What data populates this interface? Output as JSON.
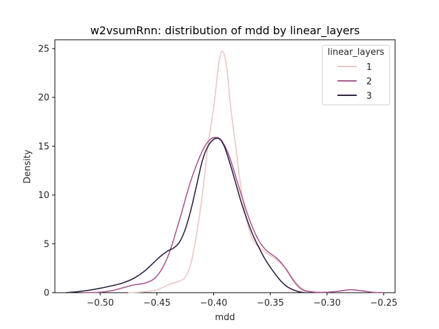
{
  "chart_data": {
    "type": "line",
    "title": "w2vsumRnn: distribution of mdd by linear_layers",
    "xlabel": "mdd",
    "ylabel": "Density",
    "xlim": [
      -0.54,
      -0.24
    ],
    "ylim": [
      0,
      25.9
    ],
    "xticks": [
      -0.5,
      -0.45,
      -0.4,
      -0.35,
      -0.3,
      -0.25
    ],
    "xtick_labels": [
      "−0.50",
      "−0.45",
      "−0.40",
      "−0.35",
      "−0.30",
      "−0.25"
    ],
    "yticks": [
      0,
      5,
      10,
      15,
      20,
      25
    ],
    "ytick_labels": [
      "0",
      "5",
      "10",
      "15",
      "20",
      "25"
    ],
    "grid": false,
    "legend": {
      "title": "linear_layers",
      "placement": "upper right"
    },
    "series": [
      {
        "name": "1",
        "color": "#ebc6c2",
        "x": [
          -0.475,
          -0.46,
          -0.45,
          -0.44,
          -0.43,
          -0.425,
          -0.42,
          -0.415,
          -0.41,
          -0.405,
          -0.4,
          -0.397,
          -0.395,
          -0.393,
          -0.391,
          -0.389,
          -0.387,
          -0.385,
          -0.38,
          -0.375,
          -0.37,
          -0.365,
          -0.36,
          -0.355,
          -0.35,
          -0.345,
          -0.34,
          -0.335,
          -0.33,
          -0.325,
          -0.32,
          -0.315
        ],
        "y": [
          0.0,
          0.1,
          0.3,
          0.8,
          1.2,
          1.6,
          3.0,
          6.0,
          10.0,
          15.0,
          19.0,
          22.0,
          23.8,
          24.7,
          24.5,
          23.5,
          21.5,
          19.0,
          14.5,
          10.0,
          7.0,
          5.3,
          4.7,
          4.2,
          3.8,
          3.4,
          2.9,
          2.3,
          1.4,
          0.7,
          0.3,
          0.1
        ]
      },
      {
        "name": "2",
        "color": "#a8578e",
        "x": [
          -0.515,
          -0.5,
          -0.49,
          -0.48,
          -0.47,
          -0.46,
          -0.45,
          -0.44,
          -0.43,
          -0.42,
          -0.41,
          -0.403,
          -0.398,
          -0.395,
          -0.392,
          -0.388,
          -0.384,
          -0.38,
          -0.375,
          -0.37,
          -0.365,
          -0.36,
          -0.355,
          -0.35,
          -0.345,
          -0.34,
          -0.335,
          -0.33,
          -0.325,
          -0.32,
          -0.31,
          -0.3,
          -0.29,
          -0.28,
          -0.27,
          -0.26,
          -0.25
        ],
        "y": [
          0.0,
          0.05,
          0.2,
          0.5,
          0.8,
          1.0,
          1.7,
          3.8,
          7.5,
          11.5,
          14.5,
          15.7,
          15.9,
          15.8,
          15.4,
          14.5,
          13.2,
          11.7,
          9.8,
          8.0,
          6.5,
          5.3,
          4.5,
          4.0,
          3.6,
          3.0,
          2.2,
          1.3,
          0.6,
          0.2,
          0.05,
          0.05,
          0.15,
          0.3,
          0.2,
          0.05,
          0.0
        ]
      },
      {
        "name": "3",
        "color": "#2d1e3e",
        "x": [
          -0.53,
          -0.52,
          -0.51,
          -0.5,
          -0.49,
          -0.48,
          -0.47,
          -0.46,
          -0.45,
          -0.445,
          -0.44,
          -0.435,
          -0.43,
          -0.425,
          -0.42,
          -0.415,
          -0.41,
          -0.405,
          -0.4,
          -0.396,
          -0.393,
          -0.39,
          -0.385,
          -0.38,
          -0.375,
          -0.37,
          -0.365,
          -0.36,
          -0.355,
          -0.35,
          -0.345,
          -0.34,
          -0.335,
          -0.33,
          -0.325,
          -0.32
        ],
        "y": [
          0.0,
          0.1,
          0.25,
          0.45,
          0.7,
          1.0,
          1.5,
          2.3,
          3.4,
          3.9,
          4.3,
          4.6,
          5.2,
          6.5,
          8.5,
          11.0,
          13.5,
          15.0,
          15.7,
          15.8,
          15.5,
          14.8,
          13.0,
          11.0,
          9.0,
          7.3,
          5.8,
          4.6,
          3.5,
          2.6,
          1.8,
          1.1,
          0.6,
          0.3,
          0.1,
          0.0
        ]
      }
    ]
  }
}
